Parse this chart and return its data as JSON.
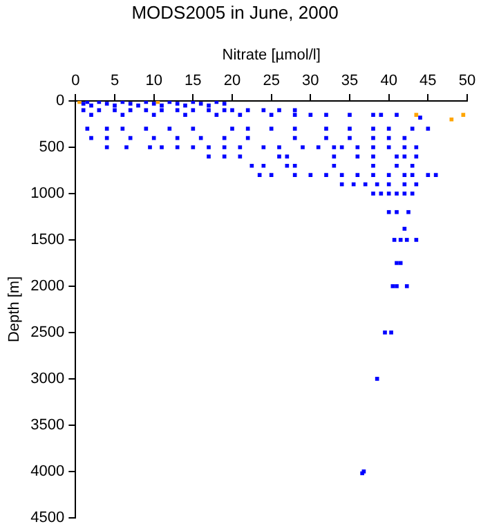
{
  "chart_data": {
    "type": "scatter",
    "title": "MODS2005 in June, 2000",
    "xlabel": "Nitrate [µmol/l]",
    "ylabel": "Depth [m]",
    "xlim": [
      0,
      50
    ],
    "xticks": [
      0,
      5,
      10,
      15,
      20,
      25,
      30,
      35,
      40,
      45,
      50
    ],
    "ylim": [
      4500,
      0
    ],
    "yticks": [
      0,
      500,
      1000,
      1500,
      2000,
      2500,
      3000,
      3500,
      4000,
      4500
    ],
    "grid": false,
    "legend": false,
    "marker": "square",
    "series": [
      {
        "color": "#0000ff",
        "x": [
          1.5,
          1,
          2,
          3,
          4,
          5,
          6,
          7,
          8,
          9,
          10,
          11,
          12,
          13,
          14,
          15,
          16,
          17,
          18,
          19,
          1,
          3,
          5,
          7,
          9,
          11,
          13,
          15,
          17,
          19,
          20,
          22,
          24,
          26,
          28,
          2,
          6,
          10,
          14,
          18,
          21,
          25,
          28,
          30,
          32,
          35,
          38,
          39,
          41,
          44,
          1.5,
          4,
          6,
          9,
          12,
          15,
          20,
          22,
          25,
          28,
          32,
          35,
          38,
          40,
          43,
          45,
          2,
          4,
          7,
          10,
          13,
          16,
          19,
          22,
          28,
          32,
          35,
          38,
          40,
          42,
          4,
          6.5,
          9.5,
          11,
          13,
          15,
          17,
          19,
          21,
          24,
          26,
          29,
          31,
          33,
          34,
          36,
          38,
          40,
          42,
          43.5,
          17,
          19,
          21,
          26,
          27,
          33,
          36,
          38,
          41,
          42,
          43.5,
          22.5,
          24,
          27,
          28,
          33,
          38,
          41,
          43,
          23.5,
          25,
          28,
          30,
          32,
          34,
          36,
          38,
          40,
          42,
          43,
          45,
          46,
          34,
          35.5,
          37,
          38.5,
          40,
          42,
          43.5,
          38,
          39,
          40,
          41,
          42,
          43,
          40,
          41,
          42.5,
          42,
          40.7,
          41.5,
          42.3,
          43.5,
          41,
          41.5,
          40.5,
          41,
          42.3,
          39.5,
          40.3,
          38.5,
          36.6,
          36.8
        ],
        "values": [
          10,
          30,
          50,
          10,
          30,
          50,
          10,
          30,
          50,
          10,
          30,
          50,
          10,
          30,
          50,
          10,
          30,
          50,
          10,
          30,
          100,
          100,
          100,
          100,
          100,
          100,
          100,
          100,
          100,
          100,
          100,
          100,
          100,
          100,
          100,
          150,
          150,
          150,
          150,
          150,
          150,
          150,
          150,
          150,
          150,
          150,
          150,
          150,
          150,
          180,
          300,
          300,
          300,
          300,
          300,
          300,
          300,
          300,
          300,
          300,
          300,
          300,
          300,
          300,
          300,
          300,
          400,
          400,
          400,
          400,
          400,
          400,
          400,
          400,
          400,
          400,
          400,
          400,
          400,
          400,
          500,
          500,
          500,
          500,
          500,
          500,
          500,
          500,
          500,
          500,
          500,
          500,
          500,
          500,
          500,
          500,
          500,
          500,
          500,
          500,
          600,
          600,
          600,
          600,
          600,
          600,
          600,
          600,
          600,
          600,
          600,
          700,
          700,
          700,
          700,
          700,
          700,
          700,
          700,
          800,
          800,
          800,
          800,
          800,
          800,
          800,
          800,
          800,
          800,
          800,
          800,
          800,
          900,
          900,
          900,
          900,
          900,
          900,
          900,
          1000,
          1000,
          1000,
          1000,
          1000,
          1000,
          1200,
          1200,
          1200,
          1380,
          1500,
          1500,
          1500,
          1500,
          1750,
          1750,
          2000,
          2000,
          2000,
          2500,
          2500,
          3000,
          4020,
          4000
        ]
      },
      {
        "color": "#ffa500",
        "x": [
          0.5,
          10.5,
          43.5,
          48,
          49.5
        ],
        "values": [
          10,
          10,
          150,
          200,
          150
        ]
      }
    ]
  }
}
